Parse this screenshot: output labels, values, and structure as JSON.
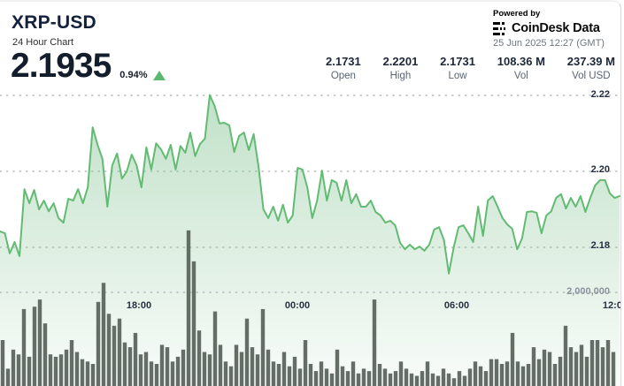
{
  "header": {
    "title": "XRP-USD",
    "subtitle": "24 Hour Chart",
    "price": "2.1935",
    "change_percent": "0.94%",
    "change_direction": "up",
    "powered_by": "Powered by",
    "brand": "CoinDesk Data",
    "timestamp": "25 Jun 2025 12:27 (GMT)"
  },
  "stats": [
    {
      "value": "2.1731",
      "label": "Open"
    },
    {
      "value": "2.2201",
      "label": "High"
    },
    {
      "value": "2.1731",
      "label": "Low"
    },
    {
      "value": "108.36 M",
      "label": "Vol"
    },
    {
      "value": "237.39 M",
      "label": "Vol USD"
    }
  ],
  "colors": {
    "line_green": "#62bb72",
    "area_green": "#8cc79a",
    "triangle_green": "#5cb86d",
    "volume_bar": "#5c665e",
    "grid_dot": "#9ba1a8",
    "text_dark": "#14213a",
    "text_gray": "#6f7680"
  },
  "chart_data": {
    "type": "area",
    "title": "XRP-USD 24 Hour Chart",
    "legend": "none",
    "grid": "dotted horizontal",
    "price_series": {
      "name": "XRP-USD price",
      "unit": "USD",
      "range": [
        2.1731,
        2.2201
      ],
      "values": [
        2.1842,
        2.1837,
        2.1784,
        2.1814,
        2.1777,
        2.1953,
        2.1916,
        2.1951,
        2.19,
        2.1923,
        2.1895,
        2.1916,
        2.1877,
        2.1865,
        2.1928,
        2.1923,
        2.1953,
        2.1916,
        2.1958,
        2.2116,
        2.207,
        2.2033,
        2.1907,
        2.2016,
        2.2047,
        2.1981,
        2.2,
        2.2044,
        2.2016,
        2.1958,
        2.2063,
        2.2005,
        2.2074,
        2.2058,
        2.2033,
        2.207,
        2.2005,
        2.2067,
        2.2049,
        2.2102,
        2.204,
        2.2072,
        2.2086,
        2.2201,
        2.2172,
        2.2126,
        2.2128,
        2.2121,
        2.2051,
        2.2093,
        2.2102,
        2.2056,
        2.2098,
        2.2012,
        2.19,
        2.1877,
        2.1907,
        2.187,
        2.1912,
        2.1865,
        2.1884,
        2.2009,
        2.2005,
        2.1958,
        2.1877,
        2.1923,
        2.2002,
        2.1923,
        2.1977,
        2.197,
        2.1923,
        2.1977,
        2.1916,
        2.194,
        2.1907,
        2.1907,
        2.1923,
        2.1893,
        2.1884,
        2.1865,
        2.187,
        2.1858,
        2.1812,
        2.1795,
        2.1807,
        2.1795,
        2.1802,
        2.1791,
        2.1807,
        2.1847,
        2.1853,
        2.1819,
        2.1731,
        2.18,
        2.1853,
        2.1858,
        2.1837,
        2.1814,
        2.1907,
        2.183,
        2.1923,
        2.1935,
        2.1907,
        2.1877,
        2.186,
        2.1849,
        2.1795,
        2.1823,
        2.1893,
        2.1895,
        2.1891,
        2.1837,
        2.1884,
        2.1895,
        2.193,
        2.194,
        2.1902,
        2.193,
        2.1907,
        2.1935,
        2.1893,
        2.193,
        2.1963,
        2.1977,
        2.1977,
        2.1942,
        2.193,
        2.1935
      ]
    },
    "volume_series": {
      "type": "bar",
      "name": "Volume",
      "unit": "millions",
      "values": [
        1.0,
        0.4,
        0.8,
        0.7,
        1.65,
        0.65,
        1.7,
        1.85,
        1.35,
        0.7,
        0.65,
        0.7,
        0.8,
        1.0,
        0.75,
        0.6,
        0.55,
        0.5,
        1.8,
        2.2,
        1.55,
        1.3,
        1.45,
        0.95,
        0.85,
        1.15,
        0.7,
        0.75,
        0.55,
        0.5,
        0.9,
        0.85,
        0.55,
        0.65,
        0.8,
        3.3,
        2.65,
        1.2,
        0.75,
        0.7,
        1.6,
        0.9,
        0.55,
        0.45,
        0.9,
        0.75,
        1.45,
        0.85,
        0.7,
        1.65,
        0.8,
        0.55,
        0.5,
        0.75,
        0.45,
        0.65,
        0.4,
        1.0,
        0.5,
        0.35,
        0.55,
        0.4,
        0.3,
        0.8,
        0.45,
        0.35,
        0.55,
        0.3,
        0.4,
        0.35,
        1.85,
        0.5,
        0.4,
        0.3,
        0.35,
        0.55,
        0.4,
        0.3,
        0.25,
        0.35,
        0.55,
        0.3,
        0.25,
        0.4,
        0.3,
        0.2,
        0.35,
        0.25,
        0.4,
        0.55,
        0.45,
        0.35,
        0.6,
        0.6,
        0.5,
        0.55,
        1.15,
        0.55,
        0.45,
        0.5,
        0.85,
        0.6,
        0.8,
        0.75,
        0.5,
        0.65,
        1.3,
        0.85,
        0.75,
        0.9,
        0.65,
        1.0,
        1.0,
        0.85,
        1.0,
        0.75
      ]
    },
    "y_axis": {
      "side": "right",
      "ticks": [
        {
          "label": "2.22",
          "value": 2.22
        },
        {
          "label": "2.20",
          "value": 2.2
        },
        {
          "label": "2.18",
          "value": 2.18
        }
      ]
    },
    "volume_axis": {
      "label": "2,000,000",
      "value": 2000000
    },
    "x_axis": {
      "labels": [
        "18:00",
        "00:00",
        "06:00",
        "12:00"
      ]
    },
    "summary": {
      "open": 2.1731,
      "high": 2.2201,
      "low": 2.1731,
      "vol": "108.36 M",
      "vol_usd": "237.39 M",
      "last": 2.1935,
      "change_pct": 0.94
    }
  }
}
